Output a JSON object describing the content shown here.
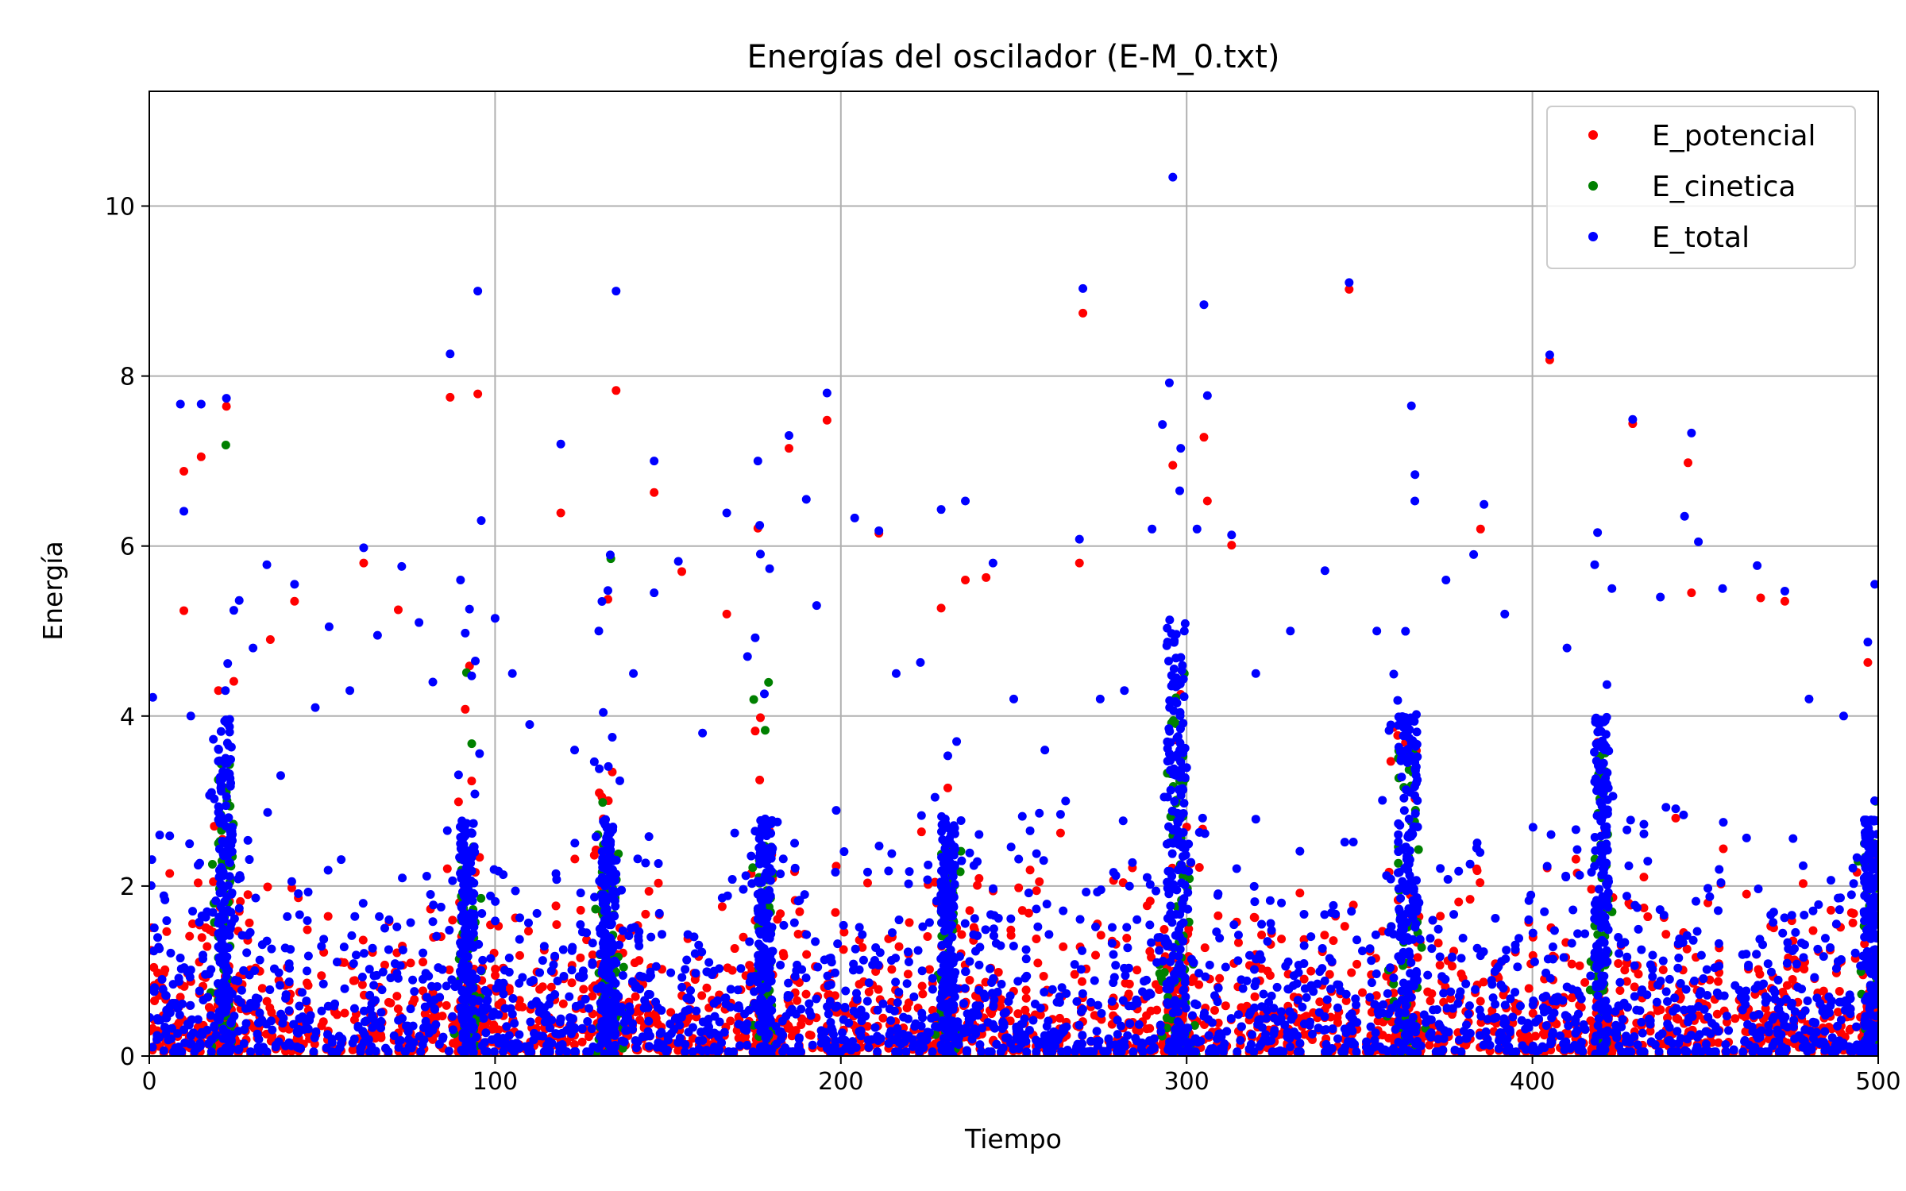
{
  "chart_data": {
    "type": "scatter",
    "title": "Energías del oscilador (E-M_0.txt)",
    "xlabel": "Tiempo",
    "ylabel": "Energía",
    "xlim": [
      0,
      500
    ],
    "ylim": [
      0,
      11.35
    ],
    "x_ticks": [
      0,
      100,
      200,
      300,
      400,
      500
    ],
    "y_ticks": [
      0,
      2,
      4,
      6,
      8,
      10
    ],
    "grid": true,
    "legend_placement": "top-right",
    "series": [
      {
        "name": "E_potencial",
        "color": "#ff0000"
      },
      {
        "name": "E_cinetica",
        "color": "#008000"
      },
      {
        "name": "E_total",
        "color": "#0000ff"
      }
    ],
    "sampled_points_note_free": true,
    "points": {
      "E_total": [
        [
          1,
          4.22
        ],
        [
          3,
          2.6
        ],
        [
          9,
          7.67
        ],
        [
          10,
          6.41
        ],
        [
          12,
          4.0
        ],
        [
          15,
          7.67
        ],
        [
          18,
          3.1
        ],
        [
          22,
          4.3
        ],
        [
          26,
          5.36
        ],
        [
          30,
          4.8
        ],
        [
          34,
          5.78
        ],
        [
          38,
          3.3
        ],
        [
          42,
          5.55
        ],
        [
          48,
          4.1
        ],
        [
          52,
          5.05
        ],
        [
          58,
          4.3
        ],
        [
          62,
          5.98
        ],
        [
          66,
          4.95
        ],
        [
          73,
          5.76
        ],
        [
          78,
          5.1
        ],
        [
          82,
          4.4
        ],
        [
          87,
          8.26
        ],
        [
          90,
          5.6
        ],
        [
          95,
          9.0
        ],
        [
          96,
          6.3
        ],
        [
          100,
          5.15
        ],
        [
          105,
          4.5
        ],
        [
          110,
          3.9
        ],
        [
          119,
          7.2
        ],
        [
          123,
          3.6
        ],
        [
          130,
          5.0
        ],
        [
          135,
          9.0
        ],
        [
          140,
          4.5
        ],
        [
          146,
          7.0
        ],
        [
          146,
          5.45
        ],
        [
          153,
          5.82
        ],
        [
          160,
          3.8
        ],
        [
          167,
          6.39
        ],
        [
          173,
          4.7
        ],
        [
          176,
          7.0
        ],
        [
          185,
          7.3
        ],
        [
          190,
          6.55
        ],
        [
          193,
          5.3
        ],
        [
          196,
          7.8
        ],
        [
          204,
          6.33
        ],
        [
          211,
          6.18
        ],
        [
          216,
          4.5
        ],
        [
          223,
          4.63
        ],
        [
          229,
          6.43
        ],
        [
          236,
          6.53
        ],
        [
          244,
          5.8
        ],
        [
          250,
          4.2
        ],
        [
          259,
          3.6
        ],
        [
          265,
          3.0
        ],
        [
          269,
          6.08
        ],
        [
          270,
          9.03
        ],
        [
          275,
          4.2
        ],
        [
          282,
          4.3
        ],
        [
          290,
          6.2
        ],
        [
          293,
          7.43
        ],
        [
          295,
          7.92
        ],
        [
          296,
          10.34
        ],
        [
          298,
          6.65
        ],
        [
          303,
          6.2
        ],
        [
          305,
          8.84
        ],
        [
          306,
          7.77
        ],
        [
          313,
          6.13
        ],
        [
          320,
          4.5
        ],
        [
          330,
          5.0
        ],
        [
          340,
          5.71
        ],
        [
          347,
          9.1
        ],
        [
          355,
          5.0
        ],
        [
          365,
          7.65
        ],
        [
          366,
          6.53
        ],
        [
          375,
          5.6
        ],
        [
          383,
          5.9
        ],
        [
          386,
          6.49
        ],
        [
          392,
          5.2
        ],
        [
          405,
          8.25
        ],
        [
          410,
          4.8
        ],
        [
          418,
          5.78
        ],
        [
          423,
          5.5
        ],
        [
          429,
          7.49
        ],
        [
          437,
          5.4
        ],
        [
          444,
          6.35
        ],
        [
          446,
          7.33
        ],
        [
          448,
          6.05
        ],
        [
          455,
          5.5
        ],
        [
          465,
          5.77
        ],
        [
          473,
          5.47
        ],
        [
          480,
          4.2
        ],
        [
          490,
          4.0
        ],
        [
          497,
          4.87
        ],
        [
          499,
          5.55
        ]
      ],
      "E_potencial": [
        [
          10,
          6.88
        ],
        [
          10,
          5.24
        ],
        [
          15,
          7.05
        ],
        [
          20,
          4.3
        ],
        [
          35,
          4.9
        ],
        [
          42,
          5.35
        ],
        [
          62,
          5.8
        ],
        [
          72,
          5.25
        ],
        [
          87,
          7.75
        ],
        [
          95,
          7.79
        ],
        [
          119,
          6.39
        ],
        [
          135,
          7.83
        ],
        [
          146,
          6.63
        ],
        [
          154,
          5.7
        ],
        [
          167,
          5.2
        ],
        [
          176,
          6.21
        ],
        [
          185,
          7.15
        ],
        [
          196,
          7.48
        ],
        [
          211,
          6.15
        ],
        [
          229,
          5.27
        ],
        [
          236,
          5.6
        ],
        [
          242,
          5.63
        ],
        [
          270,
          8.74
        ],
        [
          269,
          5.8
        ],
        [
          296,
          6.95
        ],
        [
          305,
          7.28
        ],
        [
          306,
          6.53
        ],
        [
          313,
          6.01
        ],
        [
          347,
          9.02
        ],
        [
          385,
          6.2
        ],
        [
          405,
          8.19
        ],
        [
          429,
          7.44
        ],
        [
          445,
          6.98
        ],
        [
          446,
          5.45
        ],
        [
          466,
          5.39
        ],
        [
          473,
          5.35
        ],
        [
          497,
          4.63
        ]
      ]
    }
  }
}
